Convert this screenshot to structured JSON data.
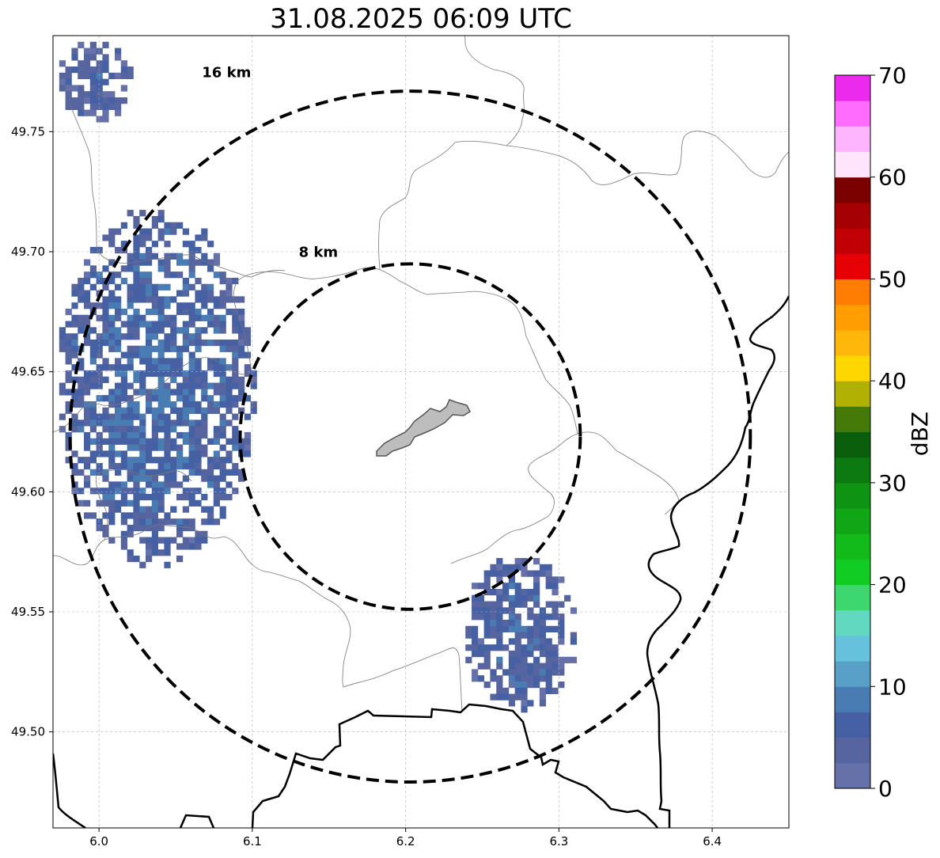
{
  "title": "31.08.2025 06:09 UTC",
  "map": {
    "lon_range": [
      5.97,
      6.45
    ],
    "lat_range": [
      49.46,
      49.79
    ],
    "x_ticks": [
      "6.0",
      "6.1",
      "6.2",
      "6.3",
      "6.4"
    ],
    "y_ticks": [
      "49.75",
      "49.70",
      "49.65",
      "49.60",
      "49.55",
      "49.50"
    ],
    "grid": "dashed",
    "radar_center": [
      6.203,
      49.623
    ],
    "rings": [
      {
        "label": "8 km",
        "radius_km": 8
      },
      {
        "label": "16 km",
        "radius_km": 16
      }
    ],
    "colors": {
      "ring": "#000000",
      "city_fill": "#bdbdbd",
      "admin_boundary": "#777777",
      "border": "#000000"
    },
    "echo_cells": [
      {
        "name": "north-west-echo",
        "lon": [
          5.97,
          6.02
        ],
        "lat": [
          49.755,
          49.79
        ],
        "dbz": 4
      },
      {
        "name": "west-echo-band",
        "lon": [
          5.97,
          6.1
        ],
        "lat": [
          49.57,
          49.72
        ],
        "dbz": 6
      },
      {
        "name": "south-east-echo",
        "lon": [
          6.235,
          6.31
        ],
        "lat": [
          49.51,
          49.575
        ],
        "dbz": 5
      }
    ]
  },
  "colorbar": {
    "label": "dBZ",
    "ticks": [
      "70",
      "60",
      "50",
      "40",
      "30",
      "20",
      "10",
      "0"
    ],
    "range": [
      0,
      70
    ],
    "colors": [
      "#6670a9",
      "#56649f",
      "#4660a4",
      "#4a7cb4",
      "#58a0c8",
      "#66c2dc",
      "#62d8c0",
      "#3ed66e",
      "#11cc22",
      "#12bb1a",
      "#10a616",
      "#0f9312",
      "#0c7a10",
      "#0a5e0c",
      "#457a09",
      "#b0b103",
      "#ffd700",
      "#ffb70b",
      "#ff9d02",
      "#fe7d02",
      "#e60005",
      "#c10006",
      "#a50004",
      "#7b0000",
      "#ffe4fb",
      "#ffb5fe",
      "#ff6cfe",
      "#ec2aee"
    ]
  }
}
